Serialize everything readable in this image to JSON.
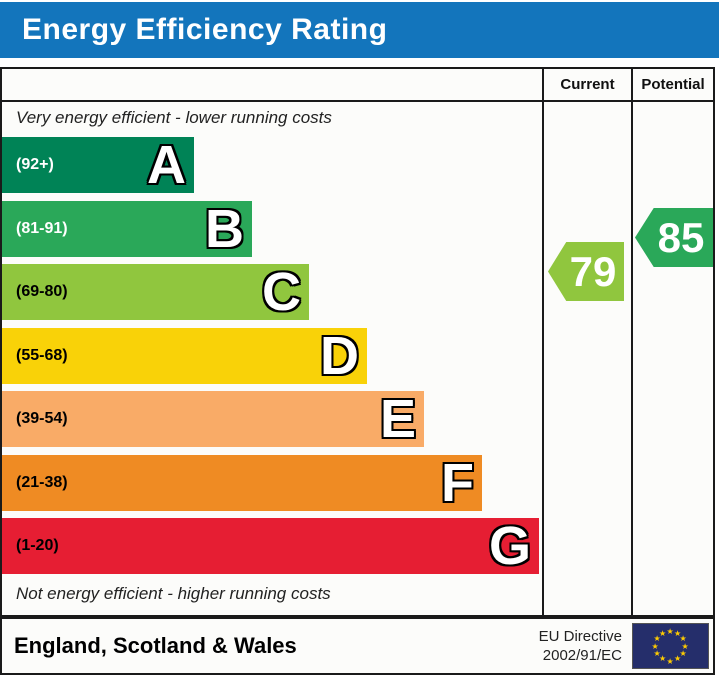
{
  "header": {
    "title": "Energy Efficiency Rating",
    "bg_color": "#1375bc"
  },
  "table": {
    "columns": {
      "current_label": "Current",
      "potential_label": "Potential"
    },
    "top_note": "Very energy efficient - lower running costs",
    "bottom_note": "Not energy efficient - higher running costs",
    "bands": [
      {
        "letter": "A",
        "range": "(92+)",
        "color": "#008356",
        "label_color": "#ffffff"
      },
      {
        "letter": "B",
        "range": "(81-91)",
        "color": "#2aa859",
        "label_color": "#ffffff"
      },
      {
        "letter": "C",
        "range": "(69-80)",
        "color": "#90c63e",
        "label_color": "#000000"
      },
      {
        "letter": "D",
        "range": "(55-68)",
        "color": "#f9d208",
        "label_color": "#000000"
      },
      {
        "letter": "E",
        "range": "(39-54)",
        "color": "#f9ab67",
        "label_color": "#000000"
      },
      {
        "letter": "F",
        "range": "(21-38)",
        "color": "#ef8b23",
        "label_color": "#000000"
      },
      {
        "letter": "G",
        "range": "(1-20)",
        "color": "#e61e33",
        "label_color": "#000000"
      }
    ],
    "current": {
      "value": "79",
      "color": "#90c63e"
    },
    "potential": {
      "value": "85",
      "color": "#2aa859"
    }
  },
  "footer": {
    "region": "England, Scotland & Wales",
    "directive_line1": "EU Directive",
    "directive_line2": "2002/91/EC",
    "flag_bg": "#252e6b",
    "star_color": "#ffcc00"
  },
  "chart_data": {
    "type": "bar",
    "title": "Energy Efficiency Rating",
    "categories": [
      "A",
      "B",
      "C",
      "D",
      "E",
      "F",
      "G"
    ],
    "band_score_ranges": [
      "92+",
      "81-91",
      "69-80",
      "55-68",
      "39-54",
      "21-38",
      "1-20"
    ],
    "band_colors": [
      "#008356",
      "#2aa859",
      "#90c63e",
      "#f9d208",
      "#f9ab67",
      "#ef8b23",
      "#e61e33"
    ],
    "scale": [
      1,
      100
    ],
    "series": [
      {
        "name": "Current",
        "value": 79,
        "band": "C",
        "color": "#90c63e"
      },
      {
        "name": "Potential",
        "value": 85,
        "band": "B",
        "color": "#2aa859"
      }
    ],
    "annotations": [
      "Very energy efficient - lower running costs",
      "Not energy efficient - higher running costs"
    ],
    "footer_region": "England, Scotland & Wales",
    "footer_directive": "EU Directive 2002/91/EC"
  }
}
